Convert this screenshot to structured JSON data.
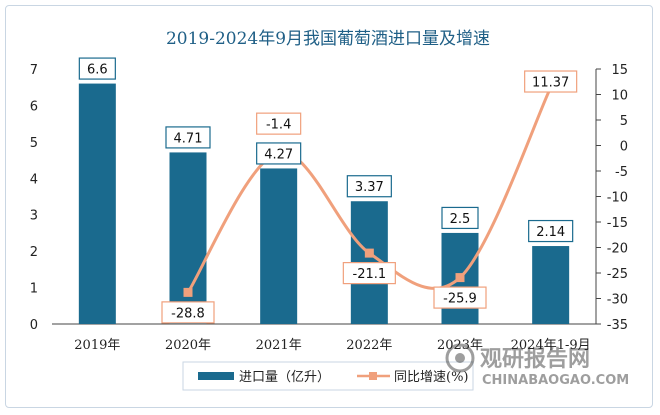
{
  "chart_data": {
    "type": "bar",
    "title": "2019-2024年9月我国葡萄酒进口量及增速",
    "categories": [
      "2019年",
      "2020年",
      "2021年",
      "2022年",
      "2023年",
      "2024年1-9月"
    ],
    "series": [
      {
        "name": "进口量（亿升）",
        "type": "bar",
        "axis": "left",
        "values": [
          6.6,
          4.71,
          4.27,
          3.37,
          2.5,
          2.14
        ]
      },
      {
        "name": "同比增速(%)",
        "type": "line",
        "axis": "right",
        "values": [
          null,
          -28.8,
          -1.4,
          -21.1,
          -25.9,
          11.37
        ]
      }
    ],
    "y_left": {
      "ticks": [
        "0",
        "1",
        "2",
        "3",
        "4",
        "5",
        "6",
        "7"
      ],
      "ylim": [
        0,
        7
      ]
    },
    "y_right": {
      "ticks": [
        "15",
        "10",
        "5",
        "0",
        "-5",
        "-10",
        "-15",
        "-20",
        "-25",
        "-30",
        "-35"
      ],
      "ylim": [
        -35,
        15
      ]
    },
    "bar_labels": [
      "6.6",
      "4.71",
      "4.27",
      "3.37",
      "2.5",
      "2.14"
    ],
    "line_labels": [
      "",
      "-28.8",
      "-1.4",
      "-21.1",
      "-25.9",
      "11.37"
    ],
    "legend_position": "bottom",
    "colors": {
      "bar": "#1a6a8e",
      "line": "#f0a07c",
      "title": "#1f5f86",
      "label_border": "#1a6a8e",
      "line_label_border": "#f0a07c"
    }
  },
  "watermark": {
    "cn": "观研报告网",
    "en": "CHINABAOGAO.COM"
  }
}
